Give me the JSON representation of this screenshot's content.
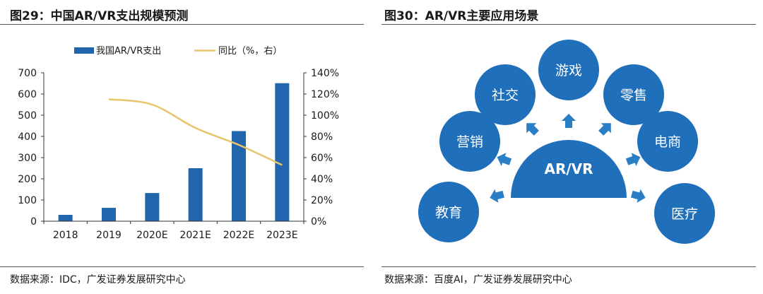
{
  "figures": {
    "left": {
      "title": "图29：中国AR/VR支出规模预测",
      "source": "数据来源：IDC，广发证券发展研究中心"
    },
    "right": {
      "title": "图30：AR/VR主要应用场景",
      "source": "数据来源：百度AI，广发证券发展研究中心"
    }
  },
  "chart_data": {
    "type": "bar",
    "categories": [
      "2018",
      "2019",
      "2020E",
      "2021E",
      "2022E",
      "2023E"
    ],
    "series": [
      {
        "name": "我国AR/VR支出",
        "type": "bar",
        "axis": "left",
        "values": [
          30,
          63,
          133,
          250,
          425,
          651
        ],
        "color": "#2166ac"
      },
      {
        "name": "同比（%，右）",
        "type": "line",
        "axis": "right",
        "values": [
          null,
          115,
          110,
          88,
          72,
          53
        ],
        "color": "#e9c46a"
      }
    ],
    "left_axis": {
      "ylim": [
        0,
        700
      ],
      "ticks": [
        "0",
        "100",
        "200",
        "300",
        "400",
        "500",
        "600",
        "700"
      ]
    },
    "right_axis": {
      "ylim": [
        0,
        140
      ],
      "ticks": [
        "0%",
        "20%",
        "40%",
        "60%",
        "80%",
        "100%",
        "120%",
        "140%"
      ]
    },
    "legend_position": "top"
  },
  "diagram": {
    "center_label": "AR/VR",
    "nodes": [
      "游戏",
      "社交",
      "零售",
      "营销",
      "电商",
      "教育",
      "医疗"
    ],
    "colors": {
      "node": "#1f6fba",
      "arrow": "#2a7ec6"
    }
  }
}
